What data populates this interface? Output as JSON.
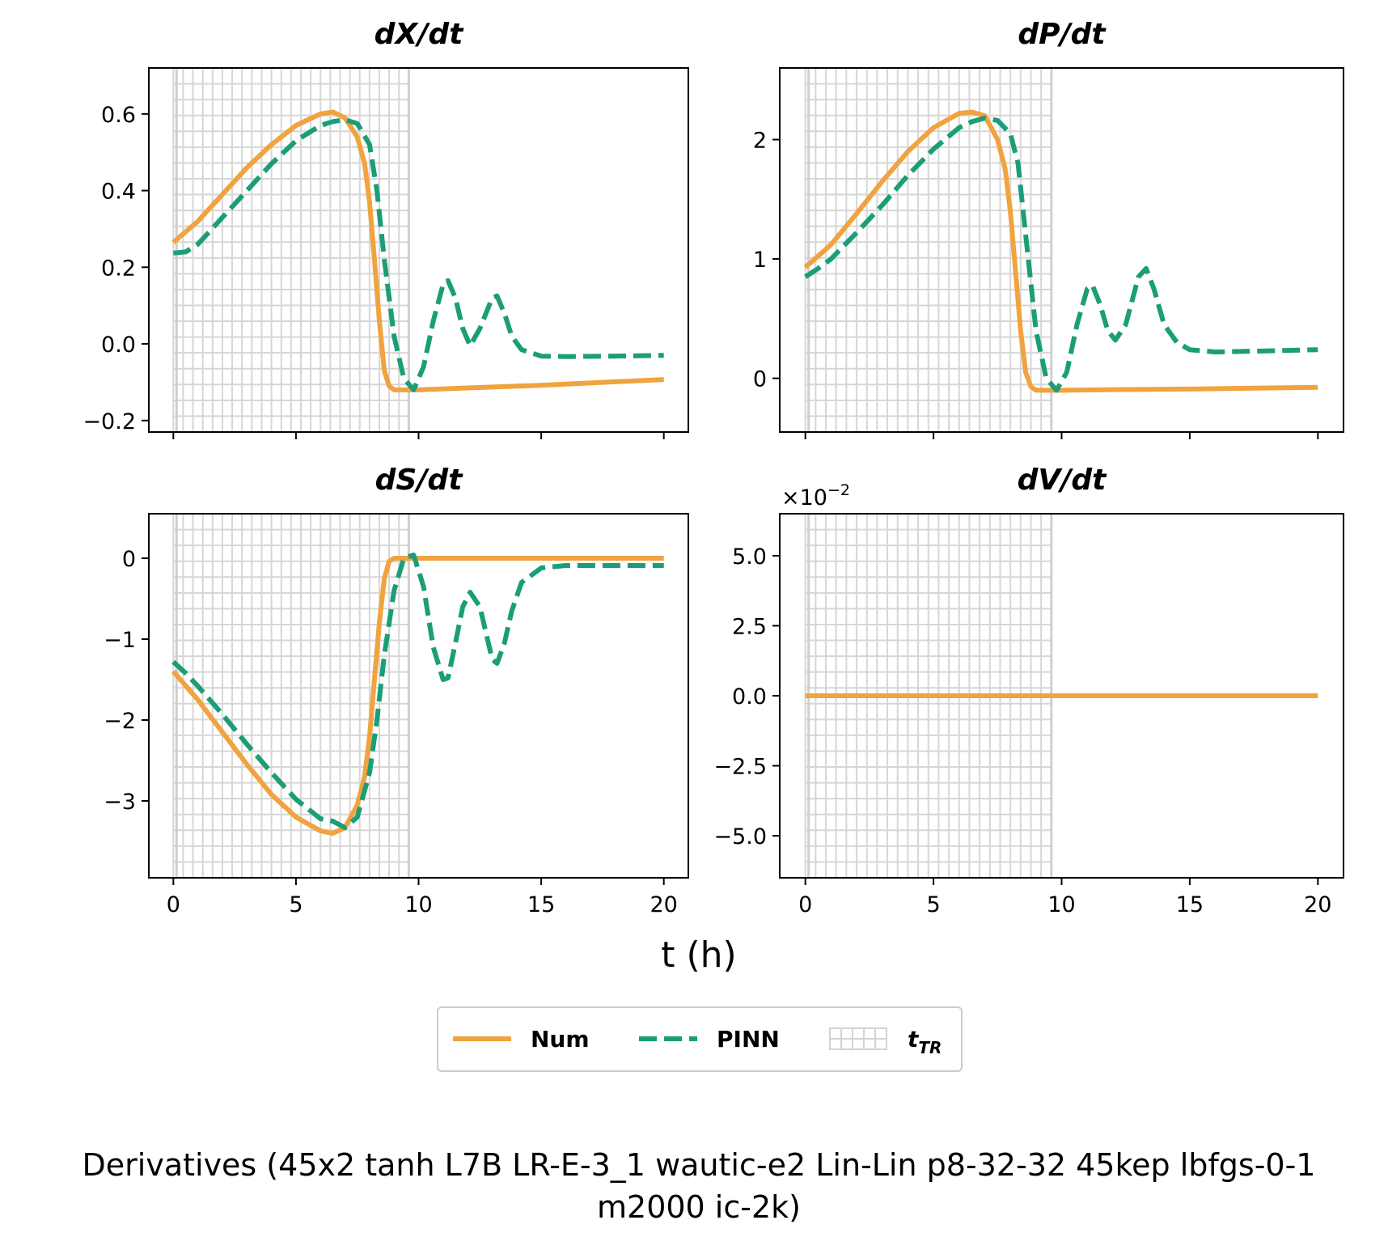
{
  "figure": {
    "xlabel": "t (h)",
    "suptitle_line1": "Derivatives (45x2 tanh L7B LR-E-3_1 wautic-e2 Lin-Lin p8-32-32 45kep lbfgs-0-1",
    "suptitle_line2": "m2000 ic-2k)"
  },
  "legend": {
    "placement": "bottom-center",
    "entries": [
      {
        "label": "Num",
        "style": "solid",
        "color": "#F0A33F"
      },
      {
        "label": "PINN",
        "style": "dashed",
        "color": "#1B9E77"
      },
      {
        "label": "t",
        "sub": "TR",
        "style": "grid-hatch",
        "color": "#D3D3D3"
      }
    ]
  },
  "chart_data": [
    {
      "type": "line",
      "title": "dX/dt",
      "xlim": [
        -1,
        21
      ],
      "ylim": [
        -0.23,
        0.72
      ],
      "xticks": [
        0,
        5,
        10,
        15,
        20
      ],
      "show_xticklabels": false,
      "yticks": [
        -0.2,
        0.0,
        0.2,
        0.4,
        0.6
      ],
      "yticklabels": [
        "−0.2",
        "0.0",
        "0.2",
        "0.4",
        "0.6"
      ],
      "training_region": [
        0,
        9.6
      ],
      "series": [
        {
          "name": "Num",
          "color": "#F0A33F",
          "style": "solid",
          "x": [
            0,
            1,
            2,
            3,
            4,
            5,
            6,
            6.5,
            7,
            7.5,
            7.8,
            8.0,
            8.2,
            8.4,
            8.6,
            8.8,
            9.0,
            10,
            12,
            15,
            20
          ],
          "y": [
            0.265,
            0.32,
            0.39,
            0.46,
            0.52,
            0.57,
            0.6,
            0.605,
            0.59,
            0.54,
            0.47,
            0.37,
            0.22,
            0.06,
            -0.07,
            -0.11,
            -0.12,
            -0.12,
            -0.115,
            -0.108,
            -0.093
          ]
        },
        {
          "name": "PINN",
          "color": "#1B9E77",
          "style": "dashed",
          "x": [
            0,
            0.5,
            1,
            2,
            3,
            4,
            5,
            6,
            6.5,
            7,
            7.5,
            8,
            8.3,
            8.6,
            9.0,
            9.4,
            9.8,
            10.2,
            10.6,
            11.0,
            11.2,
            11.5,
            11.8,
            12.1,
            12.5,
            13.0,
            13.2,
            13.5,
            13.8,
            14.2,
            15,
            16,
            18,
            20
          ],
          "y": [
            0.237,
            0.24,
            0.26,
            0.33,
            0.4,
            0.47,
            0.53,
            0.57,
            0.58,
            0.585,
            0.575,
            0.52,
            0.4,
            0.22,
            0.02,
            -0.09,
            -0.12,
            -0.06,
            0.06,
            0.155,
            0.165,
            0.12,
            0.04,
            -0.005,
            0.04,
            0.12,
            0.125,
            0.08,
            0.02,
            -0.015,
            -0.032,
            -0.033,
            -0.032,
            -0.03
          ]
        }
      ]
    },
    {
      "type": "line",
      "title": "dP/dt",
      "xlim": [
        -1,
        21
      ],
      "ylim": [
        -0.45,
        2.6
      ],
      "xticks": [
        0,
        5,
        10,
        15,
        20
      ],
      "show_xticklabels": false,
      "yticks": [
        0,
        1,
        2
      ],
      "yticklabels": [
        "0",
        "1",
        "2"
      ],
      "training_region": [
        0,
        9.6
      ],
      "series": [
        {
          "name": "Num",
          "color": "#F0A33F",
          "style": "solid",
          "x": [
            0,
            1,
            2,
            3,
            4,
            5,
            6,
            6.5,
            7,
            7.5,
            7.8,
            8.0,
            8.2,
            8.4,
            8.6,
            8.8,
            9.0,
            10,
            12,
            15,
            20
          ],
          "y": [
            0.93,
            1.12,
            1.38,
            1.65,
            1.9,
            2.1,
            2.22,
            2.23,
            2.2,
            2.0,
            1.75,
            1.4,
            0.9,
            0.4,
            0.05,
            -0.07,
            -0.1,
            -0.1,
            -0.095,
            -0.09,
            -0.075
          ]
        },
        {
          "name": "PINN",
          "color": "#1B9E77",
          "style": "dashed",
          "x": [
            0,
            0.5,
            1,
            2,
            3,
            4,
            5,
            6,
            6.5,
            7,
            7.5,
            8,
            8.3,
            8.6,
            9.0,
            9.4,
            9.8,
            10.2,
            10.6,
            11.0,
            11.2,
            11.5,
            11.8,
            12.1,
            12.5,
            13.0,
            13.3,
            13.6,
            14.0,
            14.5,
            15,
            16,
            18,
            20
          ],
          "y": [
            0.85,
            0.92,
            1.0,
            1.22,
            1.45,
            1.7,
            1.92,
            2.1,
            2.15,
            2.18,
            2.16,
            2.05,
            1.8,
            1.2,
            0.4,
            0.0,
            -0.1,
            0.05,
            0.45,
            0.75,
            0.78,
            0.62,
            0.4,
            0.32,
            0.45,
            0.85,
            0.92,
            0.75,
            0.45,
            0.3,
            0.24,
            0.22,
            0.23,
            0.24
          ]
        }
      ]
    },
    {
      "type": "line",
      "title": "dS/dt",
      "xlim": [
        -1,
        21
      ],
      "ylim": [
        -3.95,
        0.55
      ],
      "xticks": [
        0,
        5,
        10,
        15,
        20
      ],
      "xticklabels": [
        "0",
        "5",
        "10",
        "15",
        "20"
      ],
      "show_xticklabels": true,
      "yticks": [
        -3,
        -2,
        -1,
        0
      ],
      "yticklabels": [
        "−3",
        "−2",
        "−1",
        "0"
      ],
      "training_region": [
        0,
        9.6
      ],
      "series": [
        {
          "name": "Num",
          "color": "#F0A33F",
          "style": "solid",
          "x": [
            0,
            1,
            2,
            3,
            4,
            5,
            6,
            6.5,
            7,
            7.5,
            7.8,
            8.0,
            8.2,
            8.4,
            8.6,
            8.8,
            9.0,
            10,
            15,
            20
          ],
          "y": [
            -1.4,
            -1.75,
            -2.15,
            -2.55,
            -2.92,
            -3.2,
            -3.37,
            -3.4,
            -3.33,
            -3.05,
            -2.7,
            -2.2,
            -1.5,
            -0.8,
            -0.25,
            -0.04,
            0.0,
            0.0,
            0.0,
            0.0
          ]
        },
        {
          "name": "PINN",
          "color": "#1B9E77",
          "style": "dashed",
          "x": [
            0,
            0.5,
            1,
            2,
            3,
            4,
            5,
            6,
            6.5,
            7,
            7.5,
            8,
            8.3,
            8.6,
            9.0,
            9.4,
            9.8,
            10.2,
            10.6,
            11.0,
            11.2,
            11.5,
            11.8,
            12.1,
            12.5,
            13.0,
            13.2,
            13.5,
            13.8,
            14.2,
            15,
            16,
            18,
            20
          ],
          "y": [
            -1.28,
            -1.42,
            -1.58,
            -1.93,
            -2.3,
            -2.65,
            -2.98,
            -3.22,
            -3.25,
            -3.33,
            -3.2,
            -2.65,
            -2.0,
            -1.2,
            -0.4,
            0.0,
            0.04,
            -0.35,
            -1.1,
            -1.5,
            -1.48,
            -1.05,
            -0.6,
            -0.42,
            -0.6,
            -1.25,
            -1.3,
            -1.05,
            -0.65,
            -0.3,
            -0.12,
            -0.09,
            -0.09,
            -0.09
          ]
        }
      ]
    },
    {
      "type": "line",
      "title": "dV/dt",
      "offset_text": "×10",
      "offset_exponent": "−2",
      "xlim": [
        -1,
        21
      ],
      "ylim": [
        -6.5,
        6.5
      ],
      "xticks": [
        0,
        5,
        10,
        15,
        20
      ],
      "xticklabels": [
        "0",
        "5",
        "10",
        "15",
        "20"
      ],
      "show_xticklabels": true,
      "yticks": [
        -5,
        -2.5,
        0,
        2.5,
        5
      ],
      "yticklabels": [
        "−5.0",
        "−2.5",
        "0.0",
        "2.5",
        "5.0"
      ],
      "training_region": [
        0,
        9.6
      ],
      "series": [
        {
          "name": "Num",
          "color": "#F0A33F",
          "style": "solid",
          "x": [
            0,
            20
          ],
          "y": [
            0,
            0
          ]
        }
      ]
    }
  ]
}
